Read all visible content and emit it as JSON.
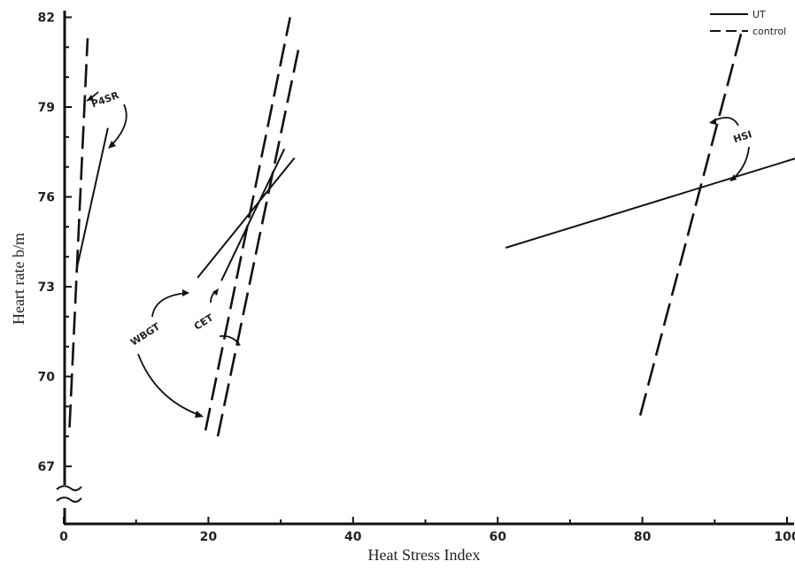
{
  "chart_data": {
    "type": "line",
    "title": "",
    "xlabel": "Heat Stress Index",
    "ylabel": "Heart rate b/m",
    "xlim": [
      0,
      103
    ],
    "ylim": [
      67,
      82.6
    ],
    "xticks": [
      0,
      20,
      40,
      60,
      80,
      100
    ],
    "yticks": [
      67,
      70,
      73,
      76,
      79,
      82
    ],
    "axis_break": "y-axis between 0 and 67",
    "grid": false,
    "legend": {
      "position": "top-right",
      "entries": [
        {
          "label": "UT",
          "style": "solid"
        },
        {
          "label": "control",
          "style": "dashed"
        }
      ]
    },
    "series": [
      {
        "index": "P4SR",
        "group": "UT",
        "style": "solid",
        "x": [
          1.8,
          6.1
        ],
        "y": [
          73.6,
          78.3
        ]
      },
      {
        "index": "P4SR",
        "group": "control",
        "style": "dashed",
        "x": [
          0.8,
          3.3
        ],
        "y": [
          68.3,
          81.3
        ]
      },
      {
        "index": "WBGT",
        "group": "UT",
        "style": "solid",
        "x": [
          18.5,
          31.9
        ],
        "y": [
          73.3,
          77.3
        ]
      },
      {
        "index": "WBGT",
        "group": "control",
        "style": "dashed",
        "x": [
          19.6,
          31.3
        ],
        "y": [
          68.2,
          82.0
        ]
      },
      {
        "index": "CET",
        "group": "UT",
        "style": "solid",
        "x": [
          21.8,
          30.5
        ],
        "y": [
          73.2,
          77.6
        ]
      },
      {
        "index": "CET",
        "group": "control",
        "style": "dashed",
        "x": [
          21.3,
          32.6
        ],
        "y": [
          68.0,
          81.1
        ]
      },
      {
        "index": "HSI",
        "group": "UT",
        "style": "solid",
        "x": [
          61.1,
          102.7
        ],
        "y": [
          74.3,
          77.4
        ]
      },
      {
        "index": "HSI",
        "group": "control",
        "style": "dashed",
        "x": [
          79.7,
          93.7
        ],
        "y": [
          68.7,
          81.5
        ]
      }
    ],
    "annotations": [
      {
        "text": "P4SR"
      },
      {
        "text": "WBGT"
      },
      {
        "text": "CET"
      },
      {
        "text": "HSI"
      }
    ]
  }
}
